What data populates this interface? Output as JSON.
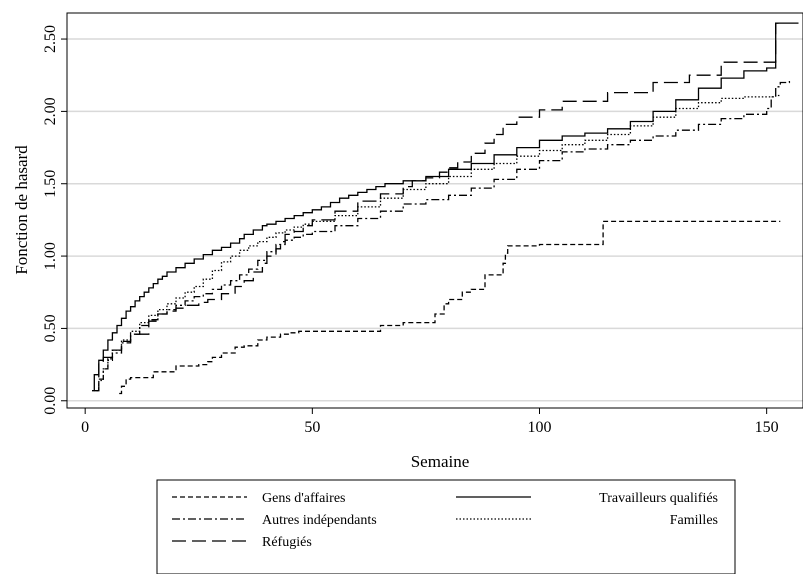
{
  "chart_data": {
    "type": "line",
    "step": true,
    "xlabel": "Semaine",
    "ylabel": "Fonction de hasard",
    "xlim": [
      -4,
      158
    ],
    "ylim": [
      -0.05,
      2.68
    ],
    "xticks": [
      0,
      50,
      100,
      150
    ],
    "xtick_labels": [
      "0",
      "50",
      "100",
      "150"
    ],
    "yticks": [
      0.0,
      0.5,
      1.0,
      1.5,
      2.0,
      2.5
    ],
    "ytick_labels": [
      "0.00",
      "0.50",
      "1.00",
      "1.50",
      "2.00",
      "2.50"
    ],
    "grid": "horizontal",
    "legend_position": "bottom",
    "series": [
      {
        "name": "Gens d'affaires",
        "style": "short-dash",
        "x": [
          7.5,
          8,
          9,
          10,
          15,
          20,
          25,
          27,
          28,
          30,
          33,
          35,
          38,
          40,
          43,
          45,
          47,
          65,
          70,
          77,
          79,
          80,
          83,
          85,
          88,
          92,
          92.5,
          93,
          100,
          110,
          114,
          153
        ],
        "y": [
          0.05,
          0.1,
          0.15,
          0.16,
          0.2,
          0.24,
          0.25,
          0.27,
          0.3,
          0.33,
          0.37,
          0.38,
          0.42,
          0.44,
          0.46,
          0.47,
          0.48,
          0.52,
          0.54,
          0.6,
          0.67,
          0.7,
          0.75,
          0.77,
          0.87,
          0.95,
          1.02,
          1.07,
          1.08,
          1.08,
          1.24,
          1.24
        ]
      },
      {
        "name": "Travailleurs qualifiés",
        "style": "solid",
        "x": [
          1.5,
          2,
          3,
          4,
          5,
          6,
          7,
          8,
          9,
          10,
          11,
          12,
          13,
          14,
          15,
          16,
          17,
          18,
          20,
          22,
          24,
          26,
          28,
          30,
          32,
          34,
          35,
          37,
          39,
          40,
          42,
          44,
          46,
          48,
          50,
          52,
          54,
          56,
          58,
          60,
          62,
          64,
          66,
          70,
          75,
          80,
          85,
          90,
          95,
          100,
          105,
          110,
          115,
          120,
          125,
          130,
          135,
          140,
          145,
          150,
          152,
          153,
          157
        ],
        "y": [
          0.07,
          0.18,
          0.28,
          0.35,
          0.42,
          0.47,
          0.52,
          0.57,
          0.62,
          0.65,
          0.69,
          0.72,
          0.75,
          0.78,
          0.81,
          0.84,
          0.86,
          0.89,
          0.92,
          0.95,
          0.98,
          1.01,
          1.04,
          1.06,
          1.09,
          1.12,
          1.15,
          1.18,
          1.21,
          1.22,
          1.24,
          1.26,
          1.28,
          1.3,
          1.32,
          1.34,
          1.37,
          1.4,
          1.42,
          1.44,
          1.46,
          1.48,
          1.5,
          1.52,
          1.55,
          1.6,
          1.64,
          1.7,
          1.75,
          1.8,
          1.83,
          1.85,
          1.88,
          1.93,
          2.0,
          2.08,
          2.16,
          2.23,
          2.28,
          2.3,
          2.61,
          2.61,
          2.61
        ]
      },
      {
        "name": "Autres indépendants",
        "style": "dash-dot",
        "x": [
          2,
          3,
          4,
          5,
          6,
          8,
          10,
          12,
          14,
          16,
          18,
          20,
          22,
          24,
          26,
          28,
          30,
          32,
          34,
          36,
          38,
          40,
          42,
          44,
          46,
          48,
          50,
          55,
          60,
          65,
          70,
          75,
          80,
          85,
          90,
          95,
          100,
          105,
          110,
          115,
          120,
          125,
          130,
          135,
          140,
          145,
          150,
          151,
          152,
          153,
          154,
          155
        ],
        "y": [
          0.07,
          0.15,
          0.22,
          0.28,
          0.33,
          0.4,
          0.46,
          0.52,
          0.56,
          0.6,
          0.63,
          0.66,
          0.69,
          0.72,
          0.74,
          0.77,
          0.8,
          0.83,
          0.87,
          0.91,
          0.97,
          1.03,
          1.08,
          1.11,
          1.13,
          1.15,
          1.17,
          1.21,
          1.26,
          1.31,
          1.36,
          1.39,
          1.42,
          1.47,
          1.53,
          1.6,
          1.66,
          1.72,
          1.74,
          1.77,
          1.8,
          1.83,
          1.87,
          1.91,
          1.95,
          1.98,
          2.02,
          2.1,
          2.17,
          2.2,
          2.2,
          2.21
        ]
      },
      {
        "name": "Familles",
        "style": "dotted",
        "x": [
          2.5,
          3,
          4,
          5,
          6,
          8,
          10,
          12,
          14,
          16,
          18,
          20,
          22,
          24,
          26,
          28,
          30,
          32,
          34,
          36,
          38,
          40,
          42,
          44,
          46,
          48,
          50,
          55,
          60,
          65,
          70,
          75,
          80,
          85,
          90,
          95,
          100,
          105,
          110,
          115,
          120,
          125,
          130,
          135,
          140,
          145,
          150,
          151,
          152,
          153
        ],
        "y": [
          0.07,
          0.14,
          0.22,
          0.29,
          0.35,
          0.42,
          0.48,
          0.54,
          0.59,
          0.63,
          0.67,
          0.71,
          0.75,
          0.79,
          0.84,
          0.9,
          0.96,
          1.0,
          1.04,
          1.07,
          1.1,
          1.13,
          1.16,
          1.18,
          1.2,
          1.22,
          1.24,
          1.28,
          1.34,
          1.4,
          1.46,
          1.5,
          1.55,
          1.6,
          1.64,
          1.69,
          1.73,
          1.77,
          1.8,
          1.84,
          1.9,
          1.96,
          2.02,
          2.06,
          2.09,
          2.1,
          2.1,
          2.1,
          2.11,
          2.11
        ]
      },
      {
        "name": "Réfugiés",
        "style": "long-dash",
        "x": [
          1.5,
          3,
          4,
          6,
          8,
          10,
          14,
          16,
          18,
          20,
          22,
          25,
          27,
          30,
          33,
          35,
          37,
          39,
          40,
          42,
          43,
          44,
          46,
          48,
          50,
          55,
          60,
          65,
          70,
          72,
          75,
          78,
          80,
          82,
          85,
          88,
          90,
          92,
          95,
          100,
          105,
          115,
          125,
          133,
          140,
          145,
          150,
          152,
          153
        ],
        "y": [
          0.07,
          0.26,
          0.3,
          0.35,
          0.41,
          0.46,
          0.55,
          0.6,
          0.62,
          0.64,
          0.66,
          0.68,
          0.7,
          0.74,
          0.79,
          0.83,
          0.89,
          0.95,
          1.0,
          1.05,
          1.1,
          1.15,
          1.17,
          1.21,
          1.25,
          1.31,
          1.38,
          1.43,
          1.48,
          1.52,
          1.54,
          1.58,
          1.61,
          1.65,
          1.71,
          1.78,
          1.84,
          1.91,
          1.96,
          2.01,
          2.07,
          2.13,
          2.2,
          2.25,
          2.34,
          2.34,
          2.34,
          2.61,
          2.61
        ]
      }
    ],
    "legend_rows": [
      [
        "Gens d'affaires",
        "Travailleurs qualifiés"
      ],
      [
        "Autres indépendants",
        "Familles"
      ],
      [
        "Réfugiés"
      ]
    ],
    "colors": {
      "grid": "#d9d9d9",
      "lines": "#000000",
      "frame": "#000000"
    }
  }
}
